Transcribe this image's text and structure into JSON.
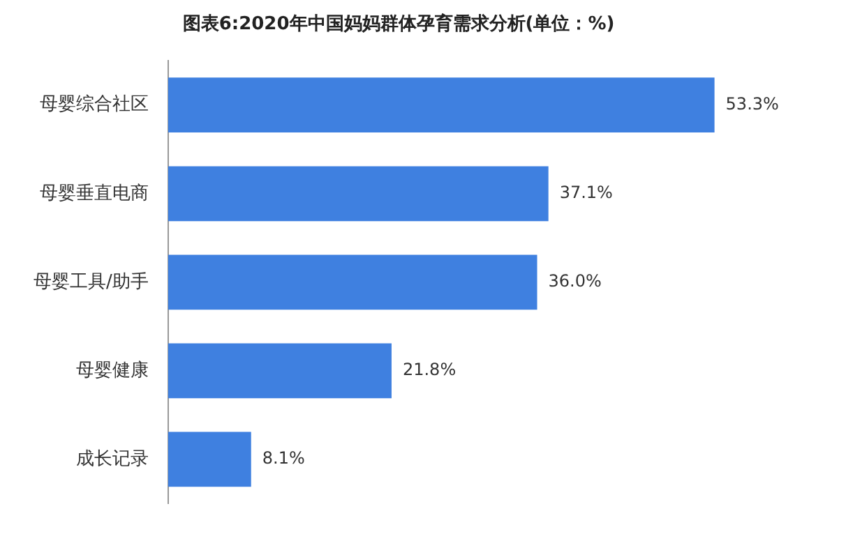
{
  "chart_data": {
    "type": "bar",
    "orientation": "horizontal",
    "title": "图表6:2020年中国妈妈群体孕育需求分析(单位：%)",
    "categories": [
      "母婴综合社区",
      "母婴垂直电商",
      "母婴工具/助手",
      "母婴健康",
      "成长记录"
    ],
    "values": [
      53.3,
      37.1,
      36.0,
      21.8,
      8.1
    ],
    "value_labels": [
      "53.3%",
      "37.1%",
      "36.0%",
      "21.8%",
      "8.1%"
    ],
    "color": "#3f80e0",
    "tick_labels": "y"
  }
}
